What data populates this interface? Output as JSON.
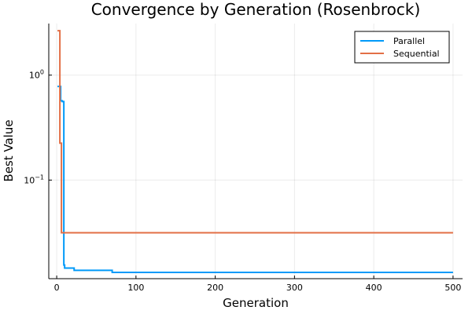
{
  "chart_data": {
    "type": "line",
    "title": "Convergence by Generation (Rosenbrock)",
    "xlabel": "Generation",
    "ylabel": "Best Value",
    "xlim": [
      -10,
      512
    ],
    "ylim": [
      0.0115,
      3.1
    ],
    "yscale": "log",
    "grid": true,
    "legend_position": "top-right",
    "x_ticks": [
      {
        "value": 0,
        "label": "0"
      },
      {
        "value": 100,
        "label": "100"
      },
      {
        "value": 200,
        "label": "200"
      },
      {
        "value": 300,
        "label": "300"
      },
      {
        "value": 400,
        "label": "400"
      },
      {
        "value": 500,
        "label": "500"
      }
    ],
    "y_ticks": [
      {
        "value": 1,
        "base": "10",
        "exp": "0"
      },
      {
        "value": 0.1,
        "base": "10",
        "exp": "−1"
      }
    ],
    "series": [
      {
        "name": "Parallel",
        "color": "#009af9",
        "x": [
          1,
          5,
          5,
          7,
          7,
          9,
          9,
          10,
          10,
          12,
          12,
          22,
          22,
          70,
          70,
          500
        ],
        "y": [
          0.78,
          0.78,
          0.57,
          0.57,
          0.56,
          0.56,
          0.0155,
          0.0155,
          0.0145,
          0.0145,
          0.0145,
          0.0145,
          0.0138,
          0.0138,
          0.0132,
          0.0132
        ]
      },
      {
        "name": "Sequential",
        "color": "#e26f46",
        "x": [
          1,
          4,
          4,
          6,
          6,
          8,
          8,
          500
        ],
        "y": [
          2.65,
          2.65,
          0.225,
          0.225,
          0.0315,
          0.0315,
          0.0315,
          0.0315
        ]
      }
    ]
  }
}
